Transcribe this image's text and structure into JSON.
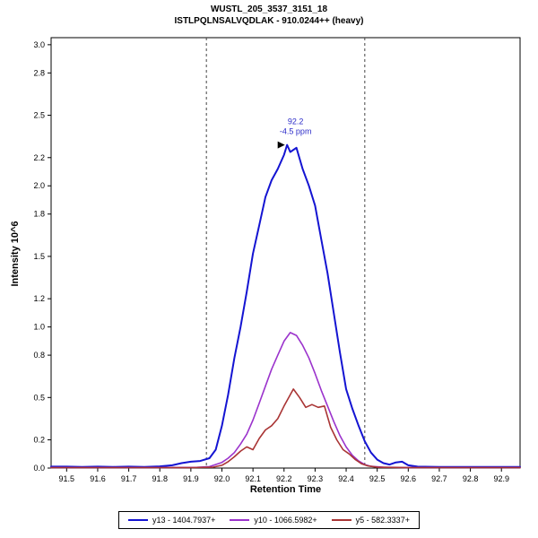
{
  "chart": {
    "title": "WUSTL_205_3537_3151_18",
    "subtitle": "ISTLPQLNSALVQDLAK - 910.0244++ (heavy)",
    "xlabel": "Retention Time",
    "ylabel": "Intensity 10^6"
  },
  "chart_data": {
    "type": "line",
    "title": "WUSTL_205_3537_3151_18",
    "subtitle": "ISTLPQLNSALVQDLAK - 910.0244++ (heavy)",
    "xlabel": "Retention Time",
    "ylabel": "Intensity 10^6",
    "xlim": [
      91.45,
      92.96
    ],
    "ylim": [
      0,
      3.05
    ],
    "grid": false,
    "legend_position": "bottom",
    "x_ticks": [
      "91.5",
      "91.6",
      "91.7",
      "91.8",
      "91.9",
      "92.0",
      "92.1",
      "92.2",
      "92.3",
      "92.4",
      "92.5",
      "92.6",
      "92.7",
      "92.8",
      "92.9"
    ],
    "y_ticks": [
      "0.0",
      "0.2",
      "0.5",
      "0.8",
      "1.0",
      "1.2",
      "1.5",
      "1.8",
      "2.0",
      "2.2",
      "2.5",
      "2.8",
      "3.0"
    ],
    "peak_boundaries": [
      91.95,
      92.46
    ],
    "boundary_color": "#444444",
    "annotation": {
      "lines": [
        "92.2",
        "-4.5 ppm"
      ],
      "x": 92.22,
      "y": 2.29,
      "color": "#2a2ac8",
      "marker": "right-triangle"
    },
    "series": [
      {
        "name": "y13 - 1404.7937+",
        "color": "#1414d2",
        "width": 2,
        "points": [
          [
            91.45,
            0.01
          ],
          [
            91.5,
            0.01
          ],
          [
            91.55,
            0.008
          ],
          [
            91.6,
            0.01
          ],
          [
            91.65,
            0.008
          ],
          [
            91.7,
            0.01
          ],
          [
            91.75,
            0.008
          ],
          [
            91.8,
            0.012
          ],
          [
            91.84,
            0.02
          ],
          [
            91.87,
            0.035
          ],
          [
            91.9,
            0.045
          ],
          [
            91.93,
            0.05
          ],
          [
            91.96,
            0.07
          ],
          [
            91.98,
            0.13
          ],
          [
            92.0,
            0.3
          ],
          [
            92.02,
            0.52
          ],
          [
            92.04,
            0.78
          ],
          [
            92.06,
            1.0
          ],
          [
            92.08,
            1.25
          ],
          [
            92.1,
            1.52
          ],
          [
            92.12,
            1.72
          ],
          [
            92.14,
            1.92
          ],
          [
            92.16,
            2.04
          ],
          [
            92.18,
            2.12
          ],
          [
            92.2,
            2.22
          ],
          [
            92.21,
            2.29
          ],
          [
            92.22,
            2.24
          ],
          [
            92.24,
            2.27
          ],
          [
            92.26,
            2.12
          ],
          [
            92.28,
            2.0
          ],
          [
            92.3,
            1.86
          ],
          [
            92.32,
            1.62
          ],
          [
            92.34,
            1.38
          ],
          [
            92.36,
            1.1
          ],
          [
            92.38,
            0.82
          ],
          [
            92.4,
            0.56
          ],
          [
            92.42,
            0.42
          ],
          [
            92.44,
            0.3
          ],
          [
            92.46,
            0.19
          ],
          [
            92.48,
            0.11
          ],
          [
            92.5,
            0.06
          ],
          [
            92.52,
            0.035
          ],
          [
            92.54,
            0.025
          ],
          [
            92.56,
            0.04
          ],
          [
            92.58,
            0.045
          ],
          [
            92.6,
            0.02
          ],
          [
            92.63,
            0.01
          ],
          [
            92.7,
            0.008
          ],
          [
            92.8,
            0.008
          ],
          [
            92.9,
            0.008
          ],
          [
            92.96,
            0.008
          ]
        ]
      },
      {
        "name": "y10 - 1066.5982+",
        "color": "#9b33cc",
        "width": 1.6,
        "points": [
          [
            91.45,
            0.004
          ],
          [
            91.8,
            0.004
          ],
          [
            91.92,
            0.005
          ],
          [
            91.96,
            0.01
          ],
          [
            92.0,
            0.04
          ],
          [
            92.02,
            0.07
          ],
          [
            92.04,
            0.11
          ],
          [
            92.06,
            0.17
          ],
          [
            92.08,
            0.24
          ],
          [
            92.1,
            0.34
          ],
          [
            92.12,
            0.46
          ],
          [
            92.14,
            0.58
          ],
          [
            92.16,
            0.7
          ],
          [
            92.18,
            0.8
          ],
          [
            92.2,
            0.9
          ],
          [
            92.22,
            0.96
          ],
          [
            92.24,
            0.94
          ],
          [
            92.26,
            0.87
          ],
          [
            92.28,
            0.78
          ],
          [
            92.3,
            0.67
          ],
          [
            92.32,
            0.55
          ],
          [
            92.34,
            0.44
          ],
          [
            92.36,
            0.33
          ],
          [
            92.38,
            0.23
          ],
          [
            92.4,
            0.15
          ],
          [
            92.42,
            0.09
          ],
          [
            92.44,
            0.05
          ],
          [
            92.46,
            0.025
          ],
          [
            92.48,
            0.012
          ],
          [
            92.52,
            0.006
          ],
          [
            92.6,
            0.004
          ],
          [
            92.96,
            0.004
          ]
        ]
      },
      {
        "name": "y5 - 582.3337+",
        "color": "#a93434",
        "width": 1.6,
        "points": [
          [
            91.45,
            0.003
          ],
          [
            91.9,
            0.003
          ],
          [
            91.97,
            0.006
          ],
          [
            92.0,
            0.02
          ],
          [
            92.02,
            0.045
          ],
          [
            92.04,
            0.08
          ],
          [
            92.06,
            0.12
          ],
          [
            92.08,
            0.15
          ],
          [
            92.1,
            0.13
          ],
          [
            92.12,
            0.21
          ],
          [
            92.14,
            0.27
          ],
          [
            92.16,
            0.3
          ],
          [
            92.18,
            0.35
          ],
          [
            92.2,
            0.44
          ],
          [
            92.22,
            0.52
          ],
          [
            92.23,
            0.56
          ],
          [
            92.25,
            0.5
          ],
          [
            92.27,
            0.43
          ],
          [
            92.29,
            0.45
          ],
          [
            92.31,
            0.43
          ],
          [
            92.33,
            0.44
          ],
          [
            92.35,
            0.29
          ],
          [
            92.37,
            0.2
          ],
          [
            92.39,
            0.13
          ],
          [
            92.41,
            0.1
          ],
          [
            92.43,
            0.06
          ],
          [
            92.45,
            0.03
          ],
          [
            92.47,
            0.015
          ],
          [
            92.5,
            0.006
          ],
          [
            92.6,
            0.003
          ],
          [
            92.96,
            0.003
          ]
        ]
      }
    ]
  }
}
